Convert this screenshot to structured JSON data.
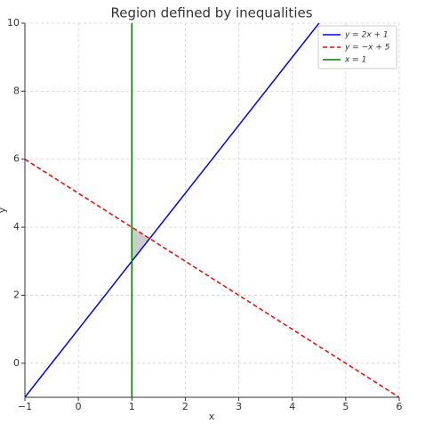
{
  "chart_data": {
    "type": "line",
    "title": "Region defined by inequalities",
    "x_label": "x",
    "y_label": "y",
    "series": [
      {
        "name": "y = 2x + 1",
        "color": "#0000ff",
        "linestyle": "solid",
        "x": [
          -1,
          4.5
        ],
        "values": [
          -1,
          10
        ]
      },
      {
        "name": "y = −x + 5",
        "color": "#ff0000",
        "linestyle": "dashed",
        "x": [
          -1,
          6
        ],
        "values": [
          6,
          -1
        ]
      },
      {
        "name": "x = 1",
        "color": "#008000",
        "linestyle": "solid",
        "x": [
          1,
          1
        ],
        "values": [
          -1,
          10
        ]
      }
    ],
    "region": {
      "color": "#999999",
      "x": [
        1,
        1,
        1.333
      ],
      "values": [
        3,
        4,
        3.667
      ]
    },
    "xlim": [
      -1,
      6
    ],
    "ylim": [
      -1,
      10
    ],
    "xticks": [
      {
        "value": -1,
        "label": "−1"
      },
      0,
      1,
      2,
      3,
      4,
      5,
      6
    ],
    "yticks": [
      0,
      2,
      4,
      6,
      8,
      10
    ],
    "grid": true,
    "legend": "upper right"
  }
}
